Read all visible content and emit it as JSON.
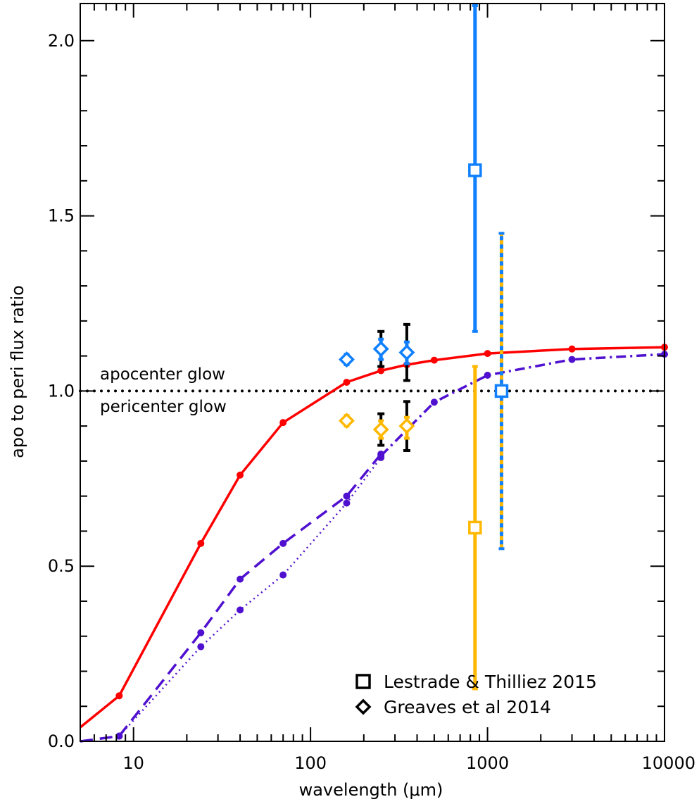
{
  "chart_data": {
    "type": "line",
    "xlabel": "wavelength (μm)",
    "ylabel": "apo to peri flux ratio",
    "xscale": "log",
    "xlim": [
      5,
      10000
    ],
    "ylim": [
      0.0,
      2.1
    ],
    "x_ticks": [
      10,
      100,
      1000,
      10000
    ],
    "x_tick_labels": [
      "10",
      "100",
      "1000",
      "10000"
    ],
    "y_ticks": [
      0.0,
      0.5,
      1.0,
      1.5,
      2.0
    ],
    "y_tick_labels": [
      "0.0",
      "0.5",
      "1.0",
      "1.5",
      "2.0"
    ],
    "grid": false,
    "reference_line": {
      "y": 1.0,
      "style": "dotted",
      "color": "#000000"
    },
    "annotations": [
      {
        "text": "apocenter glow",
        "x": 10,
        "y": 1.035
      },
      {
        "text": "pericenter glow",
        "x": 10,
        "y": 0.955
      }
    ],
    "series": [
      {
        "style": "solid",
        "color": "#ff0000",
        "x": [
          5,
          8.3,
          24,
          40,
          70,
          160,
          250,
          350,
          500,
          1000,
          3000,
          10000
        ],
        "y": [
          0.04,
          0.13,
          0.565,
          0.76,
          0.91,
          1.025,
          1.058,
          1.075,
          1.088,
          1.107,
          1.12,
          1.125
        ]
      },
      {
        "style": "dashed",
        "color": "#5010d0",
        "x": [
          5,
          8.3,
          24,
          40,
          70,
          160,
          250
        ],
        "y": [
          0.0,
          0.015,
          0.31,
          0.463,
          0.565,
          0.7,
          0.82
        ]
      },
      {
        "style": "dotted",
        "color": "#5010d0",
        "x": [
          8.3,
          24,
          40,
          70,
          160,
          250
        ],
        "y": [
          0.015,
          0.27,
          0.375,
          0.475,
          0.68,
          0.81
        ]
      },
      {
        "style": "dashdot",
        "color": "#5010d0",
        "x": [
          250,
          500,
          1000,
          3000,
          10000
        ],
        "y": [
          0.815,
          0.968,
          1.045,
          1.09,
          1.105
        ]
      }
    ],
    "points": [
      {
        "group": "Greaves et al 2014",
        "marker": "diamond",
        "color": "#1080ff",
        "x": 160,
        "y": 1.09,
        "err_low": 1.075,
        "err_high": 1.105,
        "err_color": "#1080ff"
      },
      {
        "group": "Greaves et al 2014",
        "marker": "diamond",
        "color": "#1080ff",
        "x": 250,
        "y": 1.12,
        "err_low": 1.09,
        "err_high": 1.148,
        "err_color": "#1080ff",
        "outer_err_low": 1.07,
        "outer_err_high": 1.17,
        "outer_err_color": "#000000"
      },
      {
        "group": "Greaves et al 2014",
        "marker": "diamond",
        "color": "#1080ff",
        "x": 350,
        "y": 1.11,
        "err_low": 1.078,
        "err_high": 1.14,
        "err_color": "#1080ff",
        "outer_err_low": 1.03,
        "outer_err_high": 1.19,
        "outer_err_color": "#000000"
      },
      {
        "group": "Greaves et al 2014",
        "marker": "diamond",
        "color": "#ffb800",
        "x": 160,
        "y": 0.915,
        "err_low": 0.9,
        "err_high": 0.93,
        "err_color": "#ffb800"
      },
      {
        "group": "Greaves et al 2014",
        "marker": "diamond",
        "color": "#ffb800",
        "x": 250,
        "y": 0.89,
        "err_low": 0.865,
        "err_high": 0.915,
        "err_color": "#ffb800",
        "outer_err_low": 0.845,
        "outer_err_high": 0.935,
        "outer_err_color": "#000000"
      },
      {
        "group": "Greaves et al 2014",
        "marker": "diamond",
        "color": "#ffb800",
        "x": 350,
        "y": 0.9,
        "err_low": 0.865,
        "err_high": 0.925,
        "err_color": "#ffb800",
        "outer_err_low": 0.83,
        "outer_err_high": 0.97,
        "outer_err_color": "#000000"
      },
      {
        "group": "Lestrade & Thilliez 2015",
        "marker": "square",
        "color": "#1080ff",
        "x": 850,
        "y": 1.63,
        "err_low": 1.17,
        "err_high": 2.1,
        "err_color": "#1080ff"
      },
      {
        "group": "Lestrade & Thilliez 2015",
        "marker": "square",
        "color": "#ffb800",
        "x": 850,
        "y": 0.61,
        "err_low": 0.15,
        "err_high": 1.07,
        "err_color": "#ffb800"
      },
      {
        "group": "Lestrade & Thilliez 2015",
        "marker": "square",
        "color": "#1080ff",
        "x": 1200,
        "y": 1.0,
        "err_low": 0.55,
        "err_high": 1.45,
        "err_color": "#1080ff",
        "err_stripe_color": "#ffb800"
      }
    ],
    "legend": {
      "position": "bottom-right",
      "entries": [
        {
          "marker": "square",
          "label": "Lestrade & Thilliez 2015"
        },
        {
          "marker": "diamond",
          "label": "Greaves et al 2014"
        }
      ]
    }
  }
}
